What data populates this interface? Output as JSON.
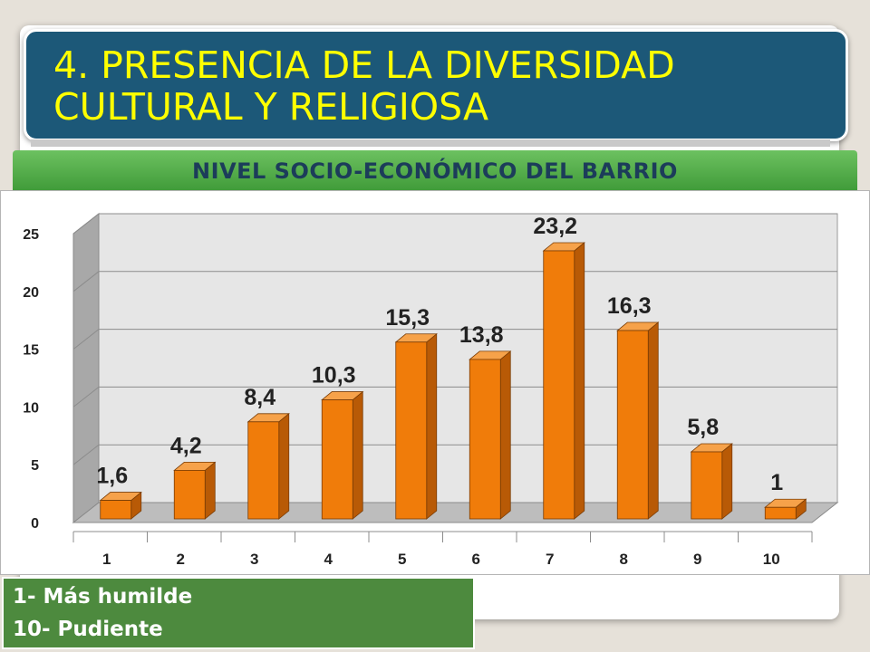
{
  "slide": {
    "title": "4. PRESENCIA DE LA DIVERSIDAD CULTURAL Y RELIGIOSA",
    "subtitle": "NIVEL SOCIO-ECONÓMICO DEL BARRIO",
    "legend_notes": [
      "1- Más humilde",
      "10- Pudiente"
    ]
  },
  "colors": {
    "title_bg": "#1c5878",
    "title_text": "#ffff00",
    "subtitle_bg": "#4ca343",
    "bar_front": "#f07c0a",
    "bar_side": "#b85a06",
    "bar_top": "#f6a24a"
  },
  "chart_data": {
    "type": "bar",
    "categories": [
      "1",
      "2",
      "3",
      "4",
      "5",
      "6",
      "7",
      "8",
      "9",
      "10"
    ],
    "values": [
      1.6,
      4.2,
      8.4,
      10.3,
      15.3,
      13.8,
      23.2,
      16.3,
      5.8,
      1
    ],
    "data_labels": [
      "1,6",
      "4,2",
      "8,4",
      "10,3",
      "15,3",
      "13,8",
      "23,2",
      "16,3",
      "5,8",
      "1"
    ],
    "yticks": [
      "0",
      "5",
      "10",
      "15",
      "20",
      "25"
    ],
    "ylim": [
      0,
      25
    ],
    "grid": true,
    "style": "3d-column"
  }
}
